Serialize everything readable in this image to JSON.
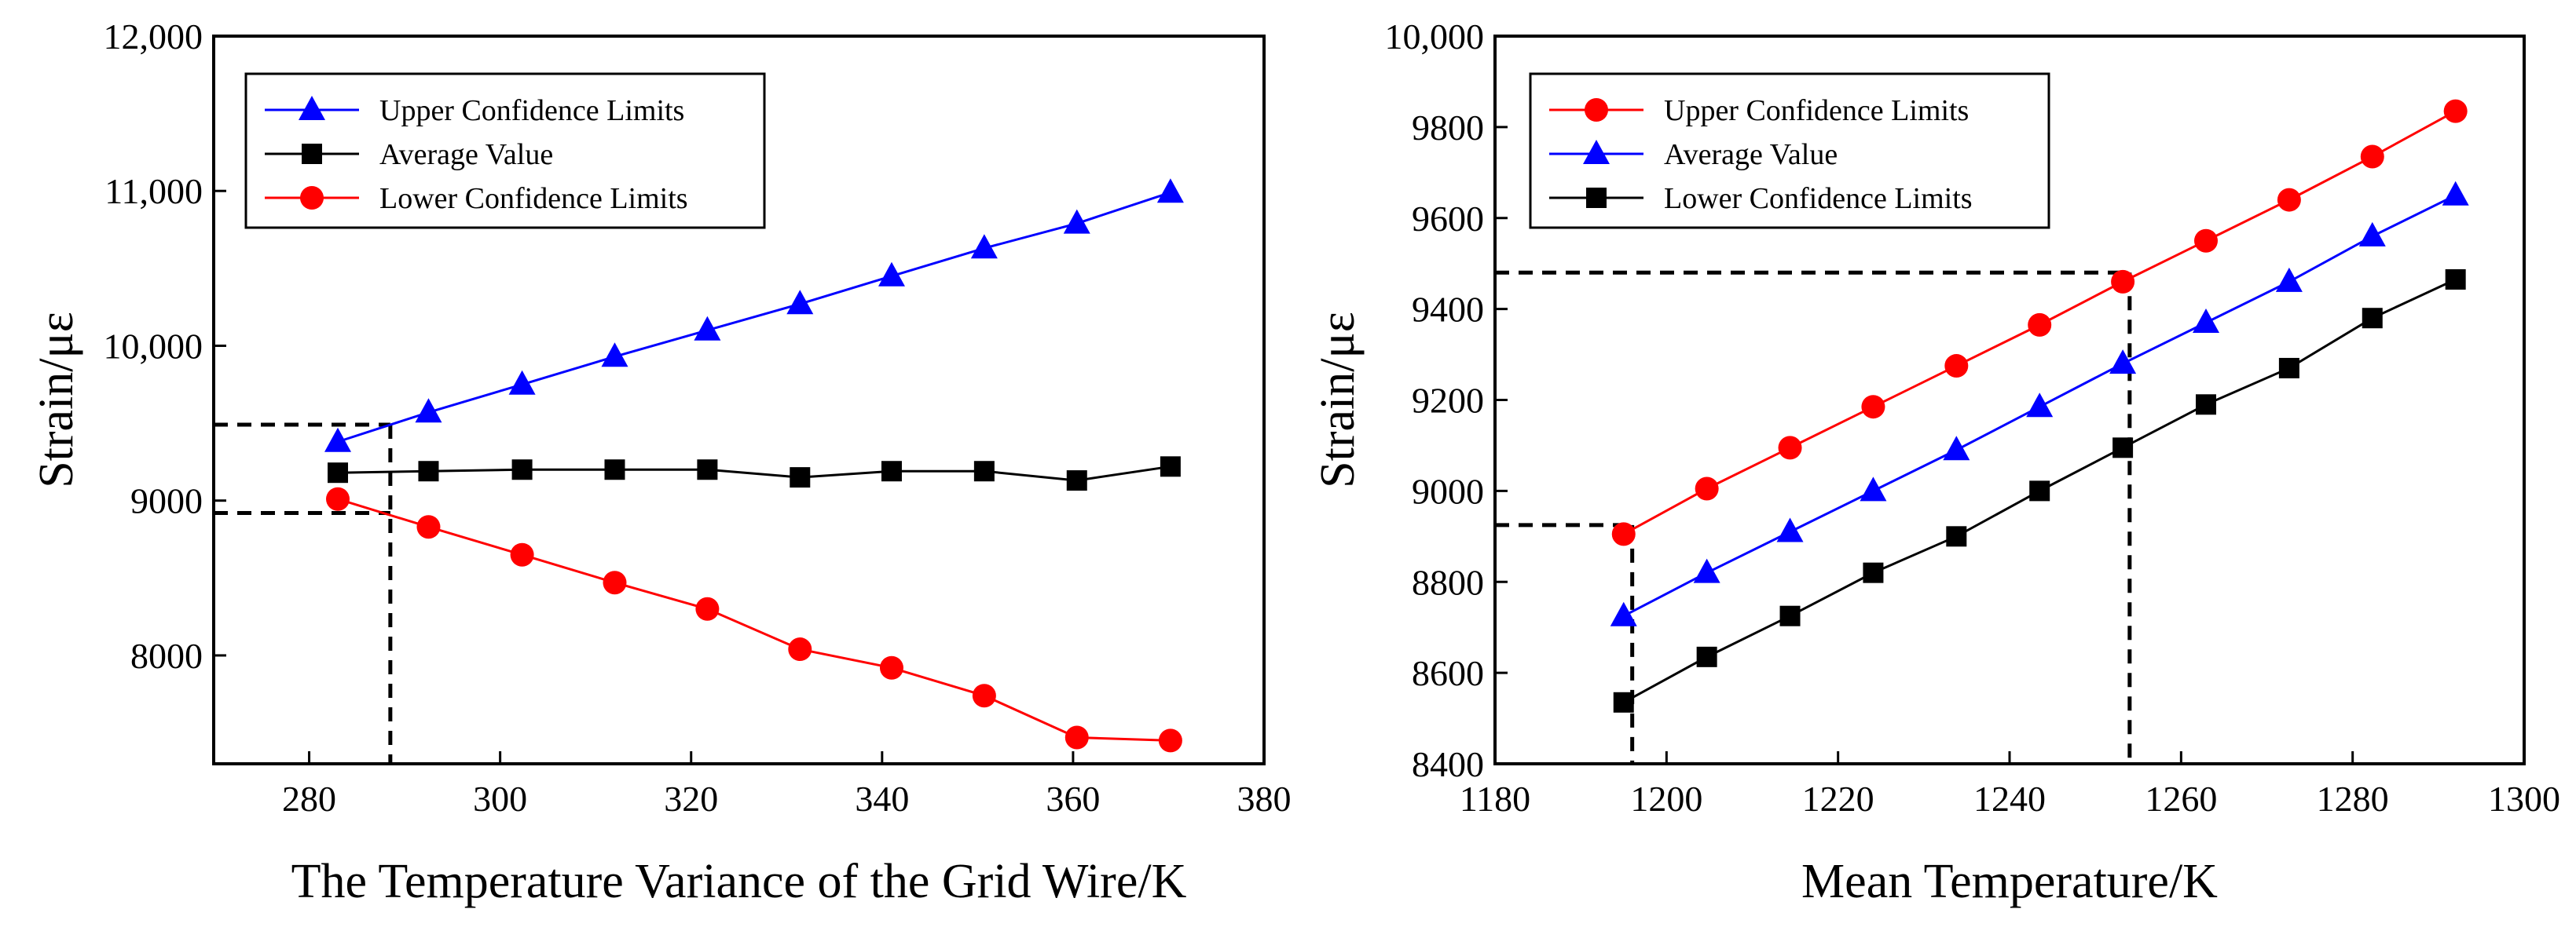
{
  "chart_data": [
    {
      "type": "line",
      "xlabel": "The Temperature Variance of the Grid Wire/K",
      "ylabel": "Strain/με",
      "xlim": [
        270,
        380
      ],
      "ylim": [
        7300,
        12000
      ],
      "xticks": [
        280,
        300,
        320,
        340,
        360,
        380
      ],
      "xtick_labels": [
        "280",
        "300",
        "320",
        "340",
        "360",
        "380"
      ],
      "yticks": [
        8000,
        9000,
        10000,
        11000,
        12000
      ],
      "ytick_labels": [
        "8000",
        "9000",
        "10,000",
        "11,000",
        "12,000"
      ],
      "legend_position": "top-left",
      "x": [
        283,
        292.5,
        302.3,
        312,
        321.7,
        331.4,
        341,
        350.7,
        360.4,
        370.2
      ],
      "series": [
        {
          "name": "Upper Confidence Limits",
          "color": "#0000ff",
          "marker": "triangle",
          "values": [
            9380,
            9570,
            9750,
            9930,
            10100,
            10270,
            10450,
            10630,
            10790,
            10990
          ]
        },
        {
          "name": "Average Value",
          "color": "#000000",
          "marker": "square",
          "values": [
            9180,
            9190,
            9200,
            9200,
            9200,
            9150,
            9190,
            9190,
            9130,
            9220
          ]
        },
        {
          "name": "Lower Confidence Limits",
          "color": "#ff0000",
          "marker": "circle",
          "values": [
            9010,
            8830,
            8650,
            8470,
            8300,
            8040,
            7920,
            7740,
            7470,
            7450
          ]
        }
      ],
      "reference_lines": {
        "x": 288.5,
        "y_values": [
          9490,
          8920
        ],
        "x_start": 270,
        "y_floor": 7300
      }
    },
    {
      "type": "line",
      "xlabel": "Mean Temperature/K",
      "ylabel": "Strain/με",
      "xlim": [
        1180,
        1300
      ],
      "ylim": [
        8400,
        10000
      ],
      "xticks": [
        1180,
        1200,
        1220,
        1240,
        1260,
        1280,
        1300
      ],
      "xtick_labels": [
        "1180",
        "1200",
        "1220",
        "1240",
        "1260",
        "1280",
        "1300"
      ],
      "yticks": [
        8400,
        8600,
        8800,
        9000,
        9200,
        9400,
        9600,
        9800,
        10000
      ],
      "ytick_labels": [
        "8400",
        "8600",
        "8800",
        "9000",
        "9200",
        "9400",
        "9600",
        "9800",
        "10,000"
      ],
      "legend_position": "top-left",
      "x": [
        1195,
        1204.7,
        1214.4,
        1224.1,
        1233.8,
        1243.5,
        1253.2,
        1262.9,
        1272.6,
        1282.3,
        1292
      ],
      "series": [
        {
          "name": "Upper Confidence Limits",
          "color": "#ff0000",
          "marker": "circle",
          "values": [
            8905,
            9005,
            9095,
            9185,
            9275,
            9365,
            9460,
            9550,
            9640,
            9735,
            9835
          ]
        },
        {
          "name": "Average Value",
          "color": "#0000ff",
          "marker": "triangle",
          "values": [
            8725,
            8820,
            8910,
            9000,
            9090,
            9185,
            9280,
            9370,
            9460,
            9560,
            9650
          ]
        },
        {
          "name": "Lower Confidence Limits",
          "color": "#000000",
          "marker": "square",
          "values": [
            8535,
            8635,
            8725,
            8820,
            8900,
            9000,
            9095,
            9190,
            9270,
            9380,
            9465
          ]
        }
      ],
      "reference_lines": {
        "x": [
          1196,
          1254
        ],
        "y_values": [
          8925,
          9480
        ],
        "x_start": 1180,
        "y_floor": 8400
      }
    }
  ]
}
